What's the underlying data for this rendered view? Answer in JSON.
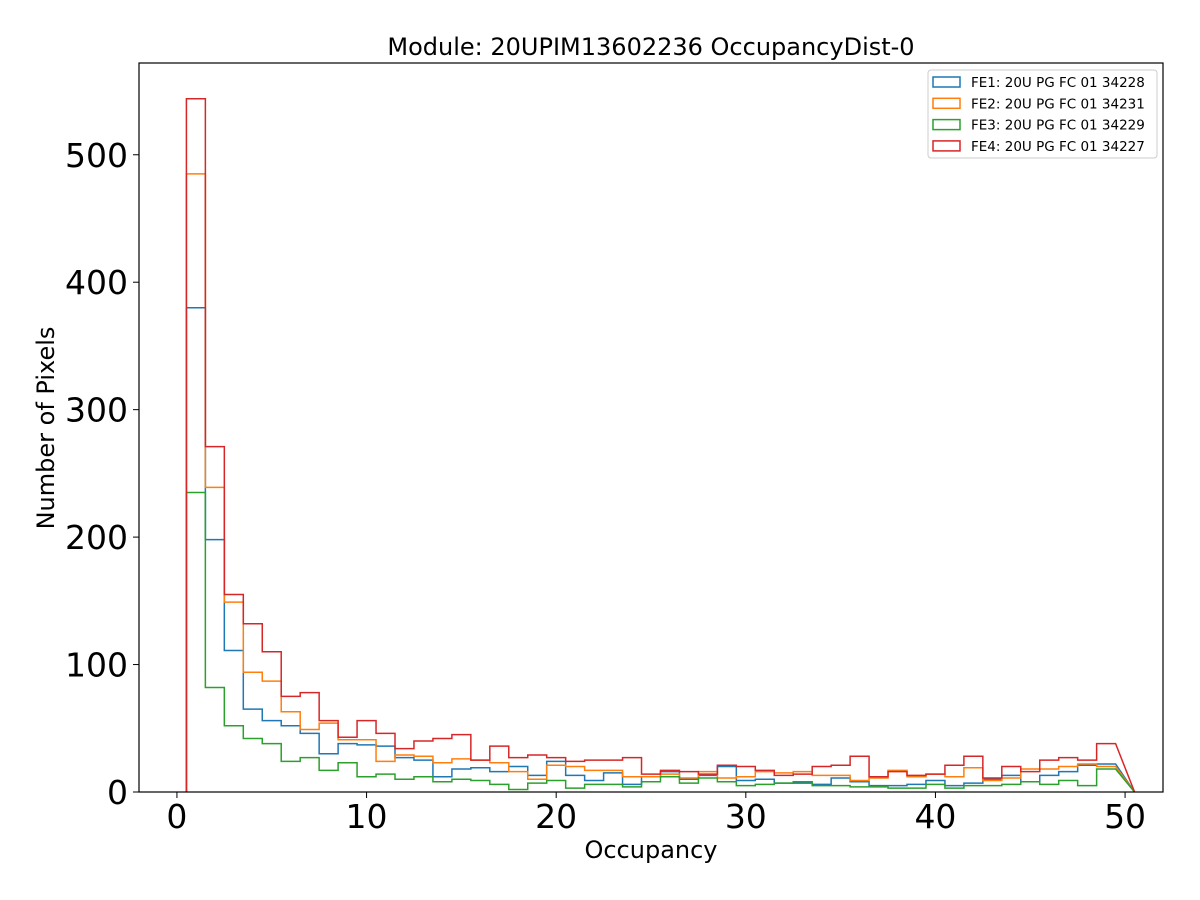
{
  "chart_data": {
    "type": "histogram",
    "title": "Module: 20UPIM13602236 OccupancyDist-0",
    "xlabel": "Occupancy",
    "ylabel": "Number of Pixels",
    "xlim": [
      -2,
      52
    ],
    "ylim": [
      0,
      572
    ],
    "x_ticks": [
      0,
      10,
      20,
      30,
      40,
      50
    ],
    "y_ticks": [
      0,
      100,
      200,
      300,
      400,
      500
    ],
    "bin_edges": [
      0.5,
      1.5,
      2.5,
      3.5,
      4.5,
      5.5,
      6.5,
      7.5,
      8.5,
      9.5,
      10.5,
      11.5,
      12.5,
      13.5,
      14.5,
      15.5,
      16.5,
      17.5,
      18.5,
      19.5,
      20.5,
      21.5,
      22.5,
      23.5,
      24.5,
      25.5,
      26.5,
      27.5,
      28.5,
      29.5,
      30.5,
      31.5,
      32.5,
      33.5,
      34.5,
      35.5,
      36.5,
      37.5,
      38.5,
      39.5,
      40.5,
      41.5,
      42.5,
      43.5,
      44.5,
      45.5,
      46.5,
      47.5,
      48.5,
      49.5
    ],
    "legend_position": "top-right",
    "series": [
      {
        "name": "FE1: 20U PG FC 01 34228",
        "color": "#1f77b4",
        "values": [
          380,
          198,
          111,
          65,
          56,
          52,
          46,
          30,
          38,
          37,
          36,
          27,
          25,
          12,
          18,
          19,
          16,
          20,
          13,
          24,
          13,
          9,
          15,
          6,
          12,
          16,
          10,
          13,
          20,
          9,
          10,
          7,
          7,
          6,
          11,
          8,
          5,
          5,
          6,
          9,
          5,
          7,
          10,
          13,
          8,
          13,
          16,
          21,
          22
        ]
      },
      {
        "name": "FE2: 20U PG FC 01 34231",
        "color": "#ff7f0e",
        "values": [
          485,
          239,
          149,
          94,
          87,
          63,
          49,
          54,
          41,
          41,
          24,
          29,
          28,
          23,
          26,
          25,
          23,
          16,
          10,
          21,
          20,
          17,
          17,
          12,
          12,
          14,
          11,
          16,
          11,
          12,
          16,
          15,
          16,
          13,
          13,
          9,
          11,
          17,
          12,
          14,
          12,
          19,
          9,
          11,
          18,
          18,
          20,
          22,
          20
        ]
      },
      {
        "name": "FE3: 20U PG FC 01 34229",
        "color": "#2ca02c",
        "values": [
          235,
          82,
          52,
          42,
          38,
          24,
          27,
          17,
          23,
          12,
          14,
          10,
          12,
          8,
          10,
          9,
          6,
          2,
          7,
          9,
          3,
          6,
          6,
          4,
          8,
          12,
          7,
          11,
          8,
          5,
          6,
          7,
          8,
          5,
          5,
          4,
          4,
          3,
          3,
          6,
          3,
          5,
          5,
          6,
          8,
          6,
          9,
          5,
          18
        ]
      },
      {
        "name": "FE4: 20U PG FC 01 34227",
        "color": "#d62728",
        "values": [
          544,
          271,
          155,
          132,
          110,
          75,
          78,
          56,
          43,
          56,
          46,
          34,
          40,
          42,
          45,
          25,
          36,
          27,
          29,
          27,
          24,
          25,
          25,
          27,
          14,
          17,
          16,
          14,
          21,
          20,
          17,
          13,
          14,
          20,
          21,
          28,
          12,
          16,
          13,
          14,
          21,
          28,
          11,
          20,
          16,
          25,
          27,
          25,
          38
        ]
      }
    ]
  }
}
